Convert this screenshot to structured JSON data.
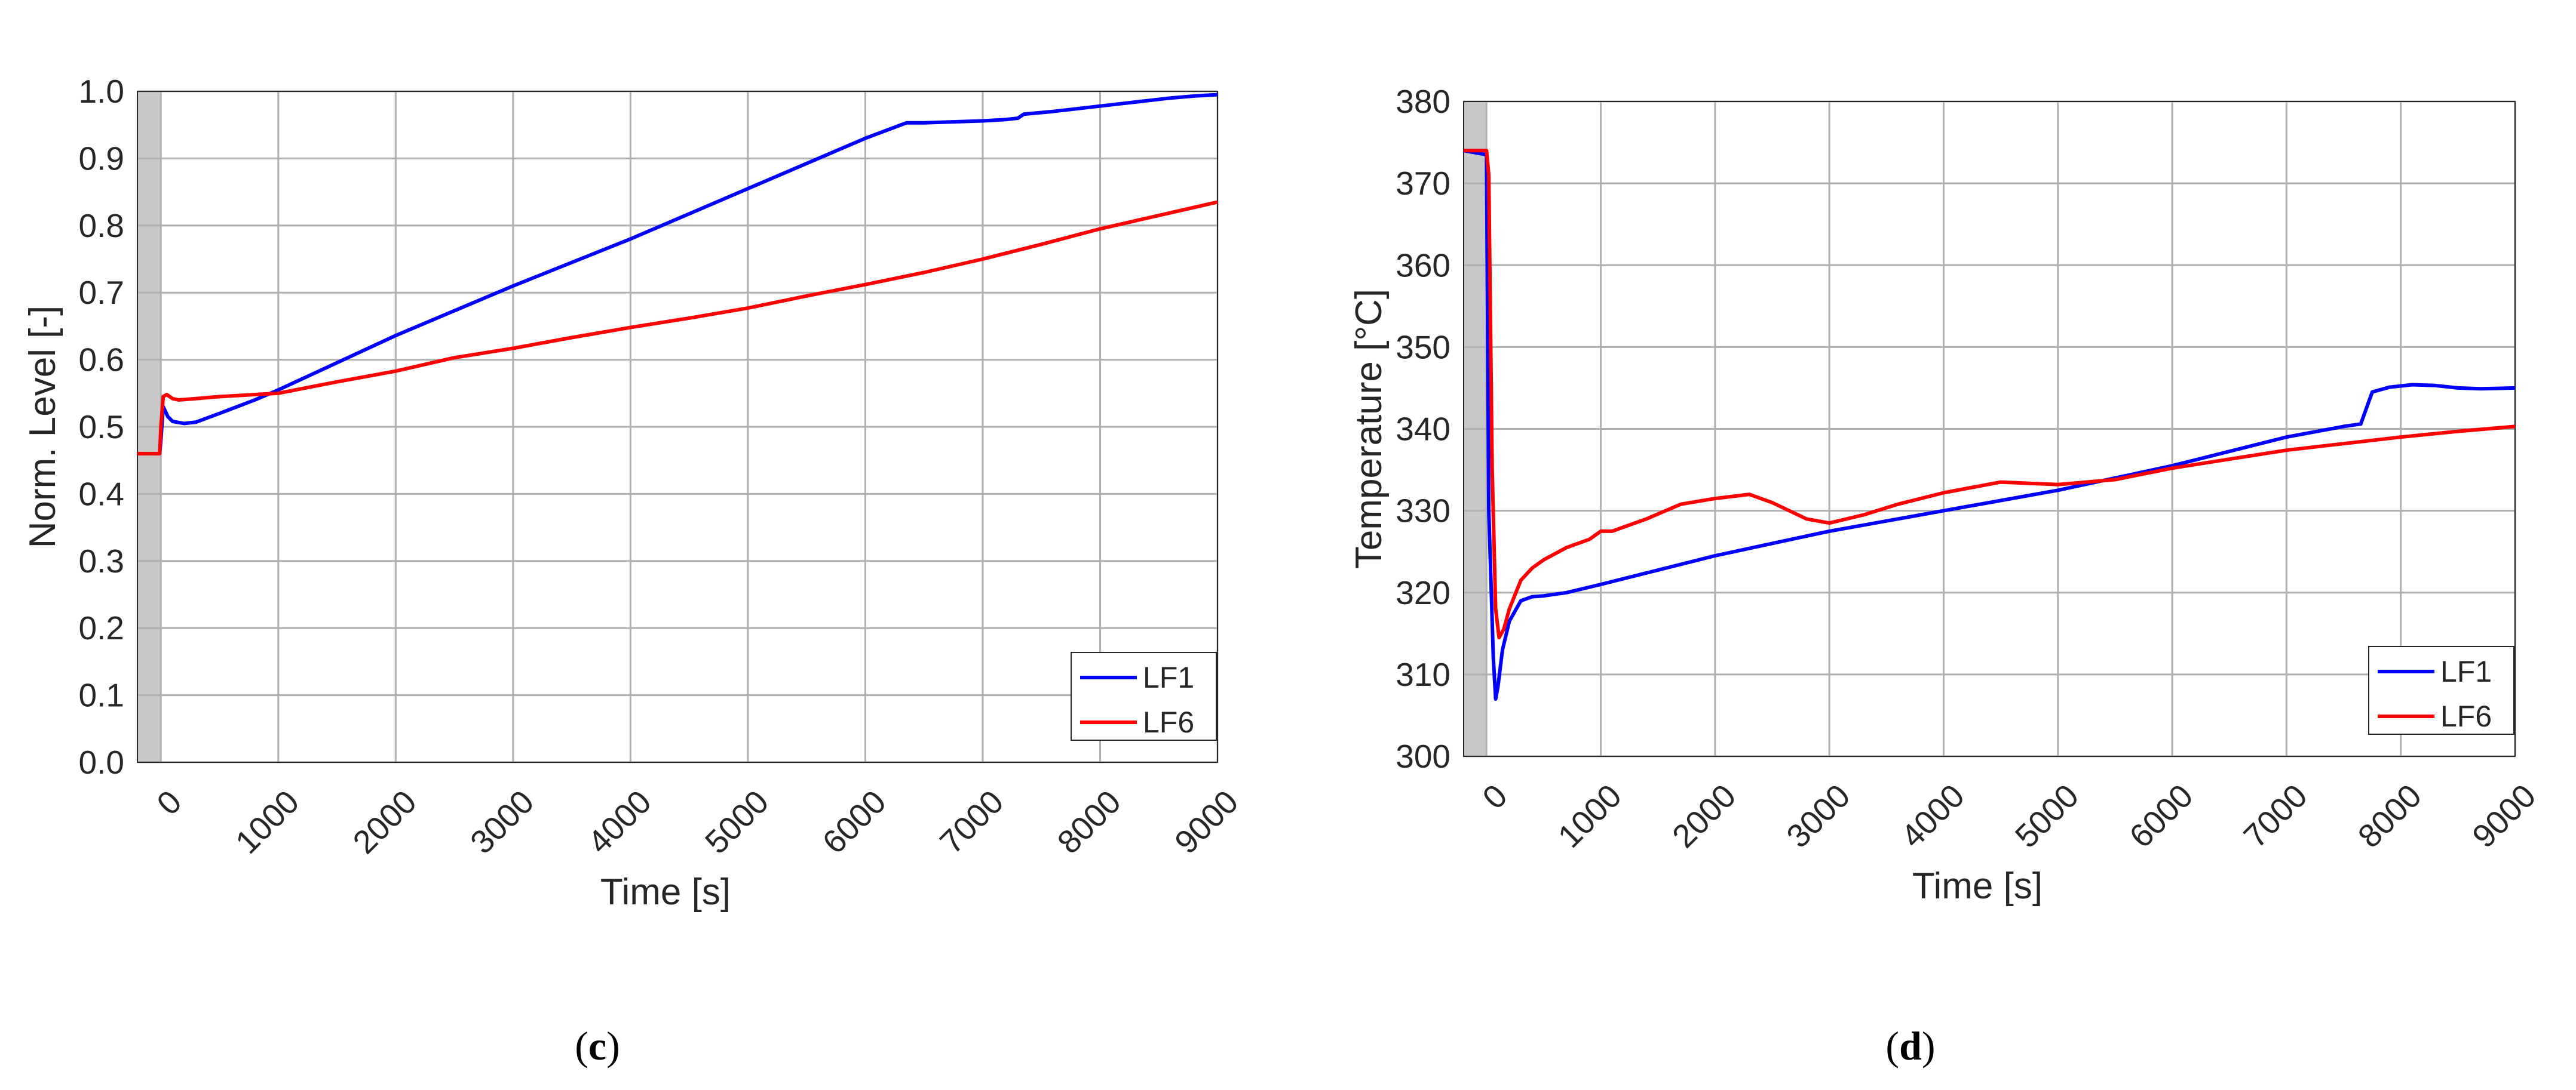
{
  "chart_data": [
    {
      "type": "line",
      "panel_label": "c",
      "xlabel": "Time [s]",
      "ylabel": "Norm. Level [-]",
      "xlim": [
        -200,
        9000
      ],
      "ylim": [
        0.0,
        1.0
      ],
      "xticks": [
        0,
        1000,
        2000,
        3000,
        4000,
        5000,
        6000,
        7000,
        8000,
        9000
      ],
      "yticks": [
        0.0,
        0.1,
        0.2,
        0.3,
        0.4,
        0.5,
        0.6,
        0.7,
        0.8,
        0.9,
        1.0
      ],
      "ytick_labels": [
        "0.0",
        "0.1",
        "0.2",
        "0.3",
        "0.4",
        "0.5",
        "0.6",
        "0.7",
        "0.8",
        "0.9",
        "1.0"
      ],
      "grid": true,
      "shaded_region": [
        -200,
        0
      ],
      "legend": "bottom-right",
      "series": [
        {
          "name": "LF1",
          "color": "#0000ff",
          "x": [
            -200,
            -10,
            0,
            20,
            60,
            100,
            200,
            300,
            500,
            800,
            1000,
            2000,
            3000,
            4000,
            5000,
            6000,
            6350,
            6500,
            7000,
            7200,
            7300,
            7350,
            7600,
            7800,
            8000,
            8200,
            8400,
            8600,
            8800,
            9000
          ],
          "y": [
            0.46,
            0.46,
            0.48,
            0.53,
            0.515,
            0.508,
            0.505,
            0.507,
            0.52,
            0.54,
            0.555,
            0.636,
            0.71,
            0.78,
            0.855,
            0.93,
            0.953,
            0.953,
            0.956,
            0.958,
            0.96,
            0.966,
            0.97,
            0.974,
            0.978,
            0.982,
            0.986,
            0.99,
            0.993,
            0.995
          ]
        },
        {
          "name": "LF6",
          "color": "#ff0000",
          "x": [
            -200,
            -10,
            0,
            20,
            50,
            100,
            150,
            300,
            500,
            1000,
            1500,
            2000,
            2500,
            3000,
            3500,
            4000,
            4500,
            5000,
            5500,
            6000,
            6500,
            7000,
            7500,
            8000,
            8500,
            9000
          ],
          "y": [
            0.46,
            0.46,
            0.5,
            0.545,
            0.548,
            0.542,
            0.54,
            0.542,
            0.545,
            0.55,
            0.567,
            0.583,
            0.603,
            0.617,
            0.633,
            0.648,
            0.662,
            0.677,
            0.695,
            0.712,
            0.73,
            0.75,
            0.772,
            0.795,
            0.815,
            0.835
          ]
        }
      ]
    },
    {
      "type": "line",
      "panel_label": "d",
      "xlabel": "Time [s]",
      "ylabel": "Temperature [°C]",
      "xlim": [
        -200,
        9000
      ],
      "ylim": [
        300,
        380
      ],
      "xticks": [
        0,
        1000,
        2000,
        3000,
        4000,
        5000,
        6000,
        7000,
        8000,
        9000
      ],
      "yticks": [
        300,
        310,
        320,
        330,
        340,
        350,
        360,
        370,
        380
      ],
      "ytick_labels": [
        "300",
        "310",
        "320",
        "330",
        "340",
        "350",
        "360",
        "370",
        "380"
      ],
      "grid": true,
      "shaded_region": [
        -200,
        0
      ],
      "legend": "bottom-right",
      "series": [
        {
          "name": "LF1",
          "color": "#0000ff",
          "x": [
            -200,
            0,
            20,
            60,
            80,
            100,
            140,
            200,
            300,
            400,
            500,
            700,
            1000,
            2000,
            3000,
            4000,
            5000,
            6000,
            7000,
            7500,
            7650,
            7750,
            7900,
            8100,
            8300,
            8500,
            8700,
            9000
          ],
          "y": [
            374,
            373.5,
            330,
            312,
            307,
            308.5,
            313,
            316.5,
            319,
            319.5,
            319.6,
            320,
            321,
            324.5,
            327.5,
            330,
            332.5,
            335.5,
            339,
            340.3,
            340.6,
            344.5,
            345.1,
            345.4,
            345.3,
            345.0,
            344.9,
            345.0
          ]
        },
        {
          "name": "LF6",
          "color": "#ff0000",
          "x": [
            -200,
            0,
            20,
            50,
            80,
            110,
            150,
            200,
            300,
            400,
            500,
            700,
            900,
            1000,
            1100,
            1200,
            1400,
            1700,
            2000,
            2300,
            2500,
            2800,
            3000,
            3300,
            3600,
            4000,
            4500,
            5000,
            5500,
            6000,
            6500,
            7000,
            7500,
            8000,
            8500,
            9000
          ],
          "y": [
            374,
            374,
            371,
            335,
            318,
            314.5,
            315.5,
            318,
            321.5,
            323,
            324,
            325.5,
            326.5,
            327.5,
            327.5,
            328,
            329,
            330.8,
            331.5,
            332,
            331,
            329,
            328.5,
            329.5,
            330.8,
            332.2,
            333.5,
            333.2,
            333.8,
            335.2,
            336.3,
            337.4,
            338.2,
            339,
            339.7,
            340.3
          ]
        }
      ]
    }
  ]
}
